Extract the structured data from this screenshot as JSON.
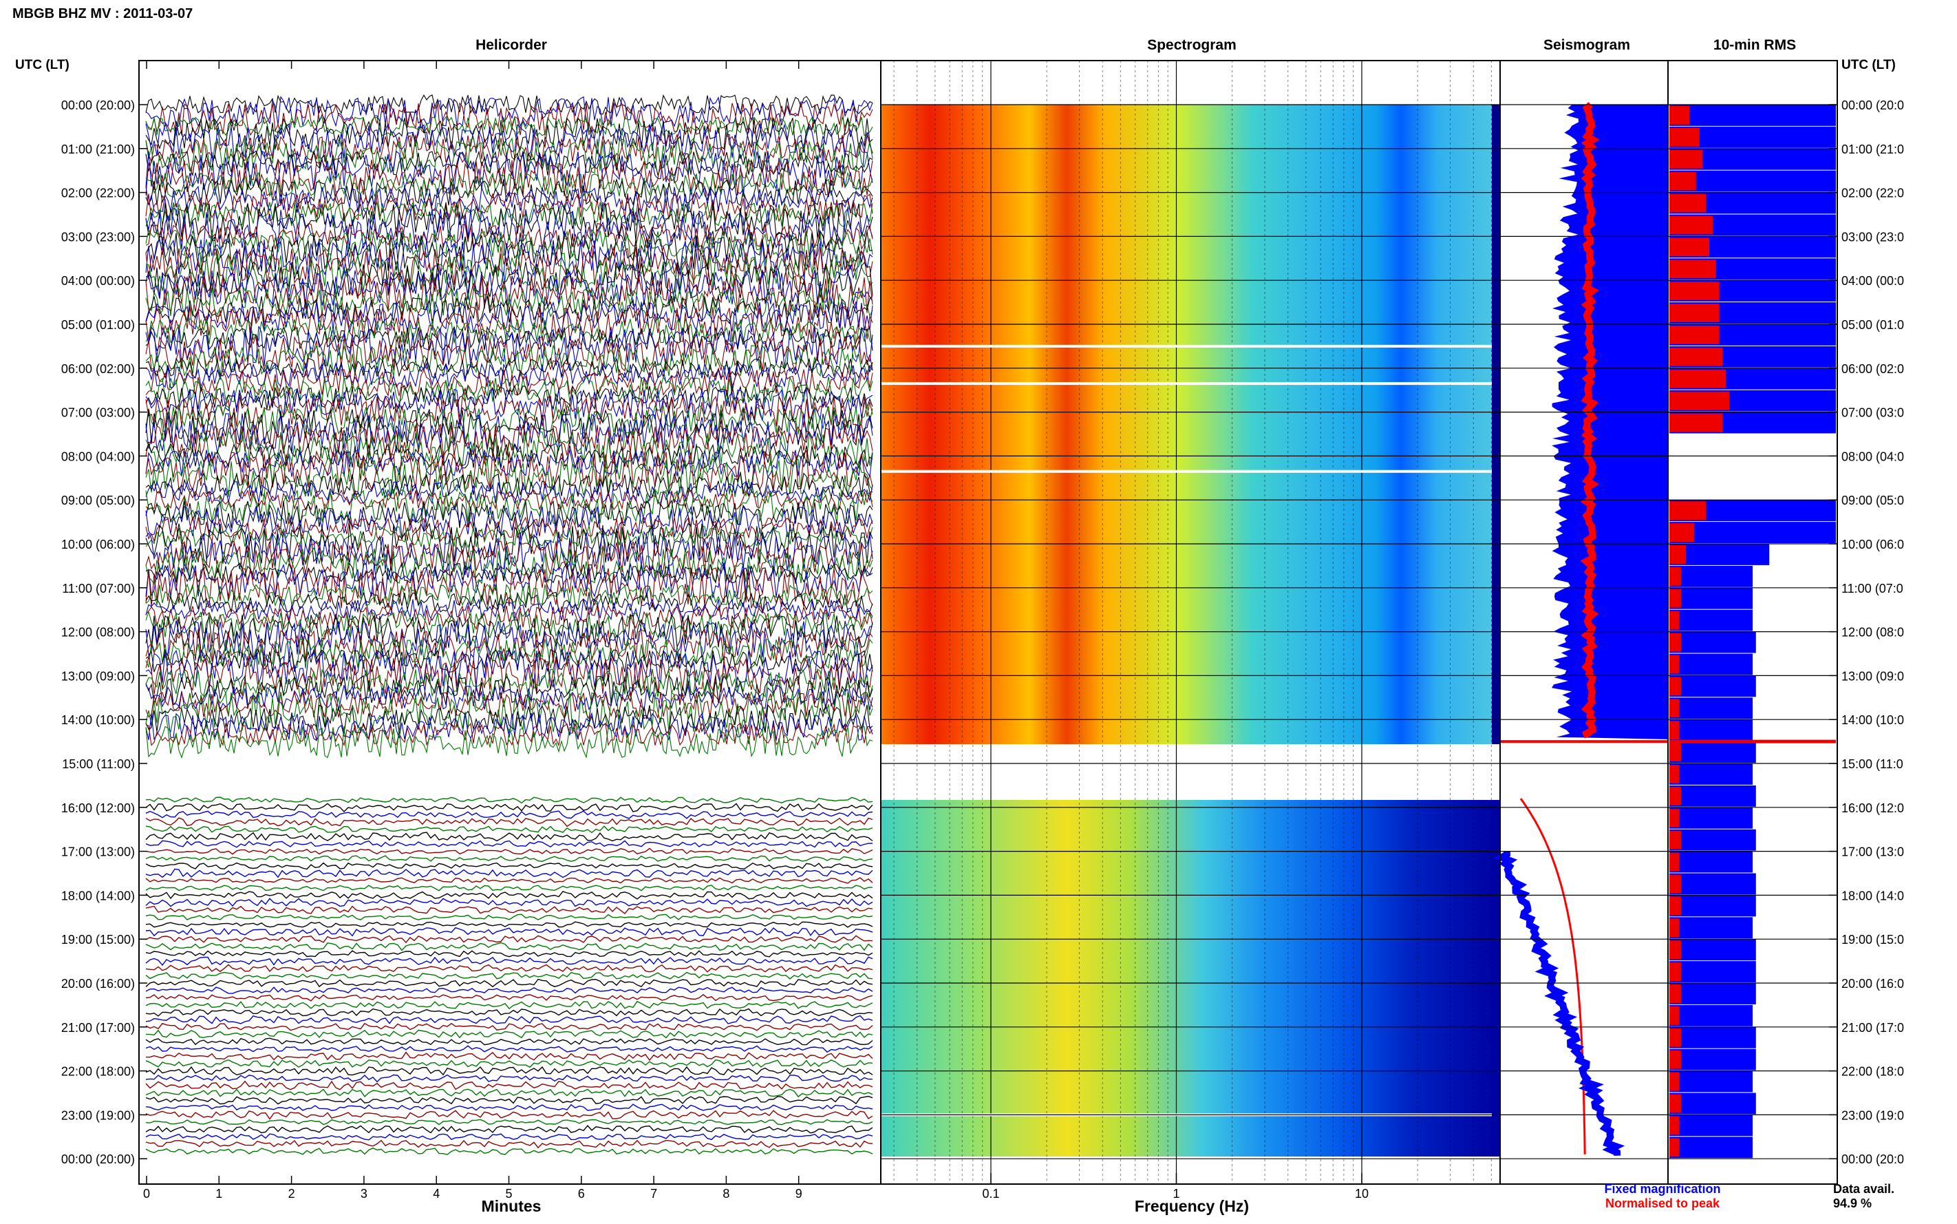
{
  "header": {
    "title": "MBGB BHZ MV : 2011-03-07"
  },
  "panels": {
    "helicorder": "Helicorder",
    "spectrogram": "Spectrogram",
    "seismogram": "Seismogram",
    "rms": "10-min RMS"
  },
  "time_axis": {
    "label_left": "UTC (LT)",
    "label_right": "UTC (LT)",
    "labels": [
      "00:00 (20:00)",
      "01:00 (21:00)",
      "02:00 (22:00)",
      "03:00 (23:00)",
      "04:00 (00:00)",
      "05:00 (01:00)",
      "06:00 (02:00)",
      "07:00 (03:00)",
      "08:00 (04:00)",
      "09:00 (05:00)",
      "10:00 (06:00)",
      "11:00 (07:00)",
      "12:00 (08:00)",
      "13:00 (09:00)",
      "14:00 (10:00)",
      "15:00 (11:00)",
      "16:00 (12:00)",
      "17:00 (13:00)",
      "18:00 (14:00)",
      "19:00 (15:00)",
      "20:00 (16:00)",
      "21:00 (17:00)",
      "22:00 (18:00)",
      "23:00 (19:00)",
      "00:00 (20:00)"
    ],
    "labels_right": [
      "00:00 (20:0",
      "01:00 (21:0",
      "02:00 (22:0",
      "03:00 (23:0",
      "04:00 (00:0",
      "05:00 (01:0",
      "06:00 (02:0",
      "07:00 (03:0",
      "08:00 (04:0",
      "09:00 (05:0",
      "10:00 (06:0",
      "11:00 (07:0",
      "12:00 (08:0",
      "13:00 (09:0",
      "14:00 (10:0",
      "15:00 (11:0",
      "16:00 (12:0",
      "17:00 (13:0",
      "18:00 (14:0",
      "19:00 (15:0",
      "20:00 (16:0",
      "21:00 (17:0",
      "22:00 (18:0",
      "23:00 (19:0",
      "00:00 (20:0"
    ]
  },
  "legend": {
    "fixed": "Fixed magnification",
    "normalised": "Normalised to peak",
    "fixed_color": "#0000ff",
    "normalised_color": "#ff0000"
  },
  "data_avail": {
    "label": "Data avail.",
    "value": "94.9 %"
  },
  "colors": {
    "trace_cycle": [
      "#000000",
      "#0000cc",
      "#8b0000",
      "#007700"
    ],
    "rms_fixed": "#0000ff",
    "rms_norm": "#ee0000"
  },
  "chart_data": [
    {
      "type": "line",
      "title": "Helicorder",
      "xlabel": "Minutes",
      "x_ticks": [
        "0",
        "1",
        "2",
        "3",
        "4",
        "5",
        "6",
        "7",
        "8",
        "9"
      ],
      "xlim": [
        0,
        10
      ],
      "data_gap_hours": [
        14.5,
        15.9
      ],
      "regimes": [
        {
          "hours": [
            0,
            14.5
          ],
          "amplitude": "very high"
        },
        {
          "hours": [
            15.9,
            24
          ],
          "amplitude": "low"
        }
      ]
    },
    {
      "type": "heatmap",
      "title": "Spectrogram",
      "xlabel": "Frequency (Hz)",
      "x_scale": "log",
      "x_ticks": [
        "0.1",
        "1",
        "10"
      ],
      "xlim": [
        0.025,
        50
      ],
      "data_gap_hours": [
        14.5,
        16.0
      ],
      "gap_lines_hours": [
        5.5,
        6.35,
        8.35,
        23.0
      ]
    },
    {
      "type": "line",
      "title": "Seismogram",
      "series": [
        {
          "name": "Fixed magnification",
          "color": "#0000ff"
        },
        {
          "name": "Normalised to peak",
          "color": "#ff0000"
        }
      ]
    },
    {
      "type": "bar",
      "title": "10-min RMS",
      "x": [
        0.0,
        0.5,
        1.0,
        1.5,
        2.0,
        2.5,
        3.0,
        3.5,
        4.0,
        4.5,
        5.0,
        5.5,
        6.0,
        6.5,
        7.0,
        7.5,
        8.0,
        8.5,
        9.0,
        9.5,
        10.0,
        10.5,
        11.0,
        11.5,
        12.0,
        12.5,
        13.0,
        13.5,
        14.0,
        14.5,
        15.0,
        15.5,
        16.0,
        16.5,
        17.0,
        17.5,
        18.0,
        18.5,
        19.0,
        19.5,
        20.0,
        20.5,
        21.0,
        21.5,
        22.0,
        22.5,
        23.0,
        23.5
      ],
      "series": [
        {
          "name": "Fixed magnification",
          "values": [
            1,
            1,
            1,
            1,
            1,
            1,
            1,
            1,
            1,
            1,
            1,
            1,
            1,
            1,
            1,
            null,
            null,
            null,
            1.0,
            1.0,
            0.6,
            0.5,
            0.5,
            0.5,
            0.52,
            0.5,
            0.52,
            0.5,
            0.5,
            0.52,
            0.5,
            0.52,
            0.5,
            0.52,
            0.5,
            0.52,
            0.52,
            0.5,
            0.52,
            0.52,
            0.52,
            0.5,
            0.52,
            0.52,
            0.5,
            0.52,
            0.5,
            0.5
          ]
        },
        {
          "name": "Normalised to peak",
          "values": [
            0.12,
            0.18,
            0.2,
            0.16,
            0.22,
            0.26,
            0.24,
            0.28,
            0.3,
            0.3,
            0.3,
            0.32,
            0.34,
            0.36,
            0.32,
            null,
            null,
            null,
            0.22,
            0.15,
            0.1,
            0.07,
            0.07,
            0.06,
            0.07,
            0.06,
            0.07,
            0.06,
            0.06,
            0.07,
            0.06,
            0.07,
            0.06,
            0.07,
            0.06,
            0.07,
            0.07,
            0.06,
            0.07,
            0.07,
            0.07,
            0.06,
            0.07,
            0.07,
            0.06,
            0.07,
            0.06,
            0.06
          ]
        }
      ]
    }
  ]
}
